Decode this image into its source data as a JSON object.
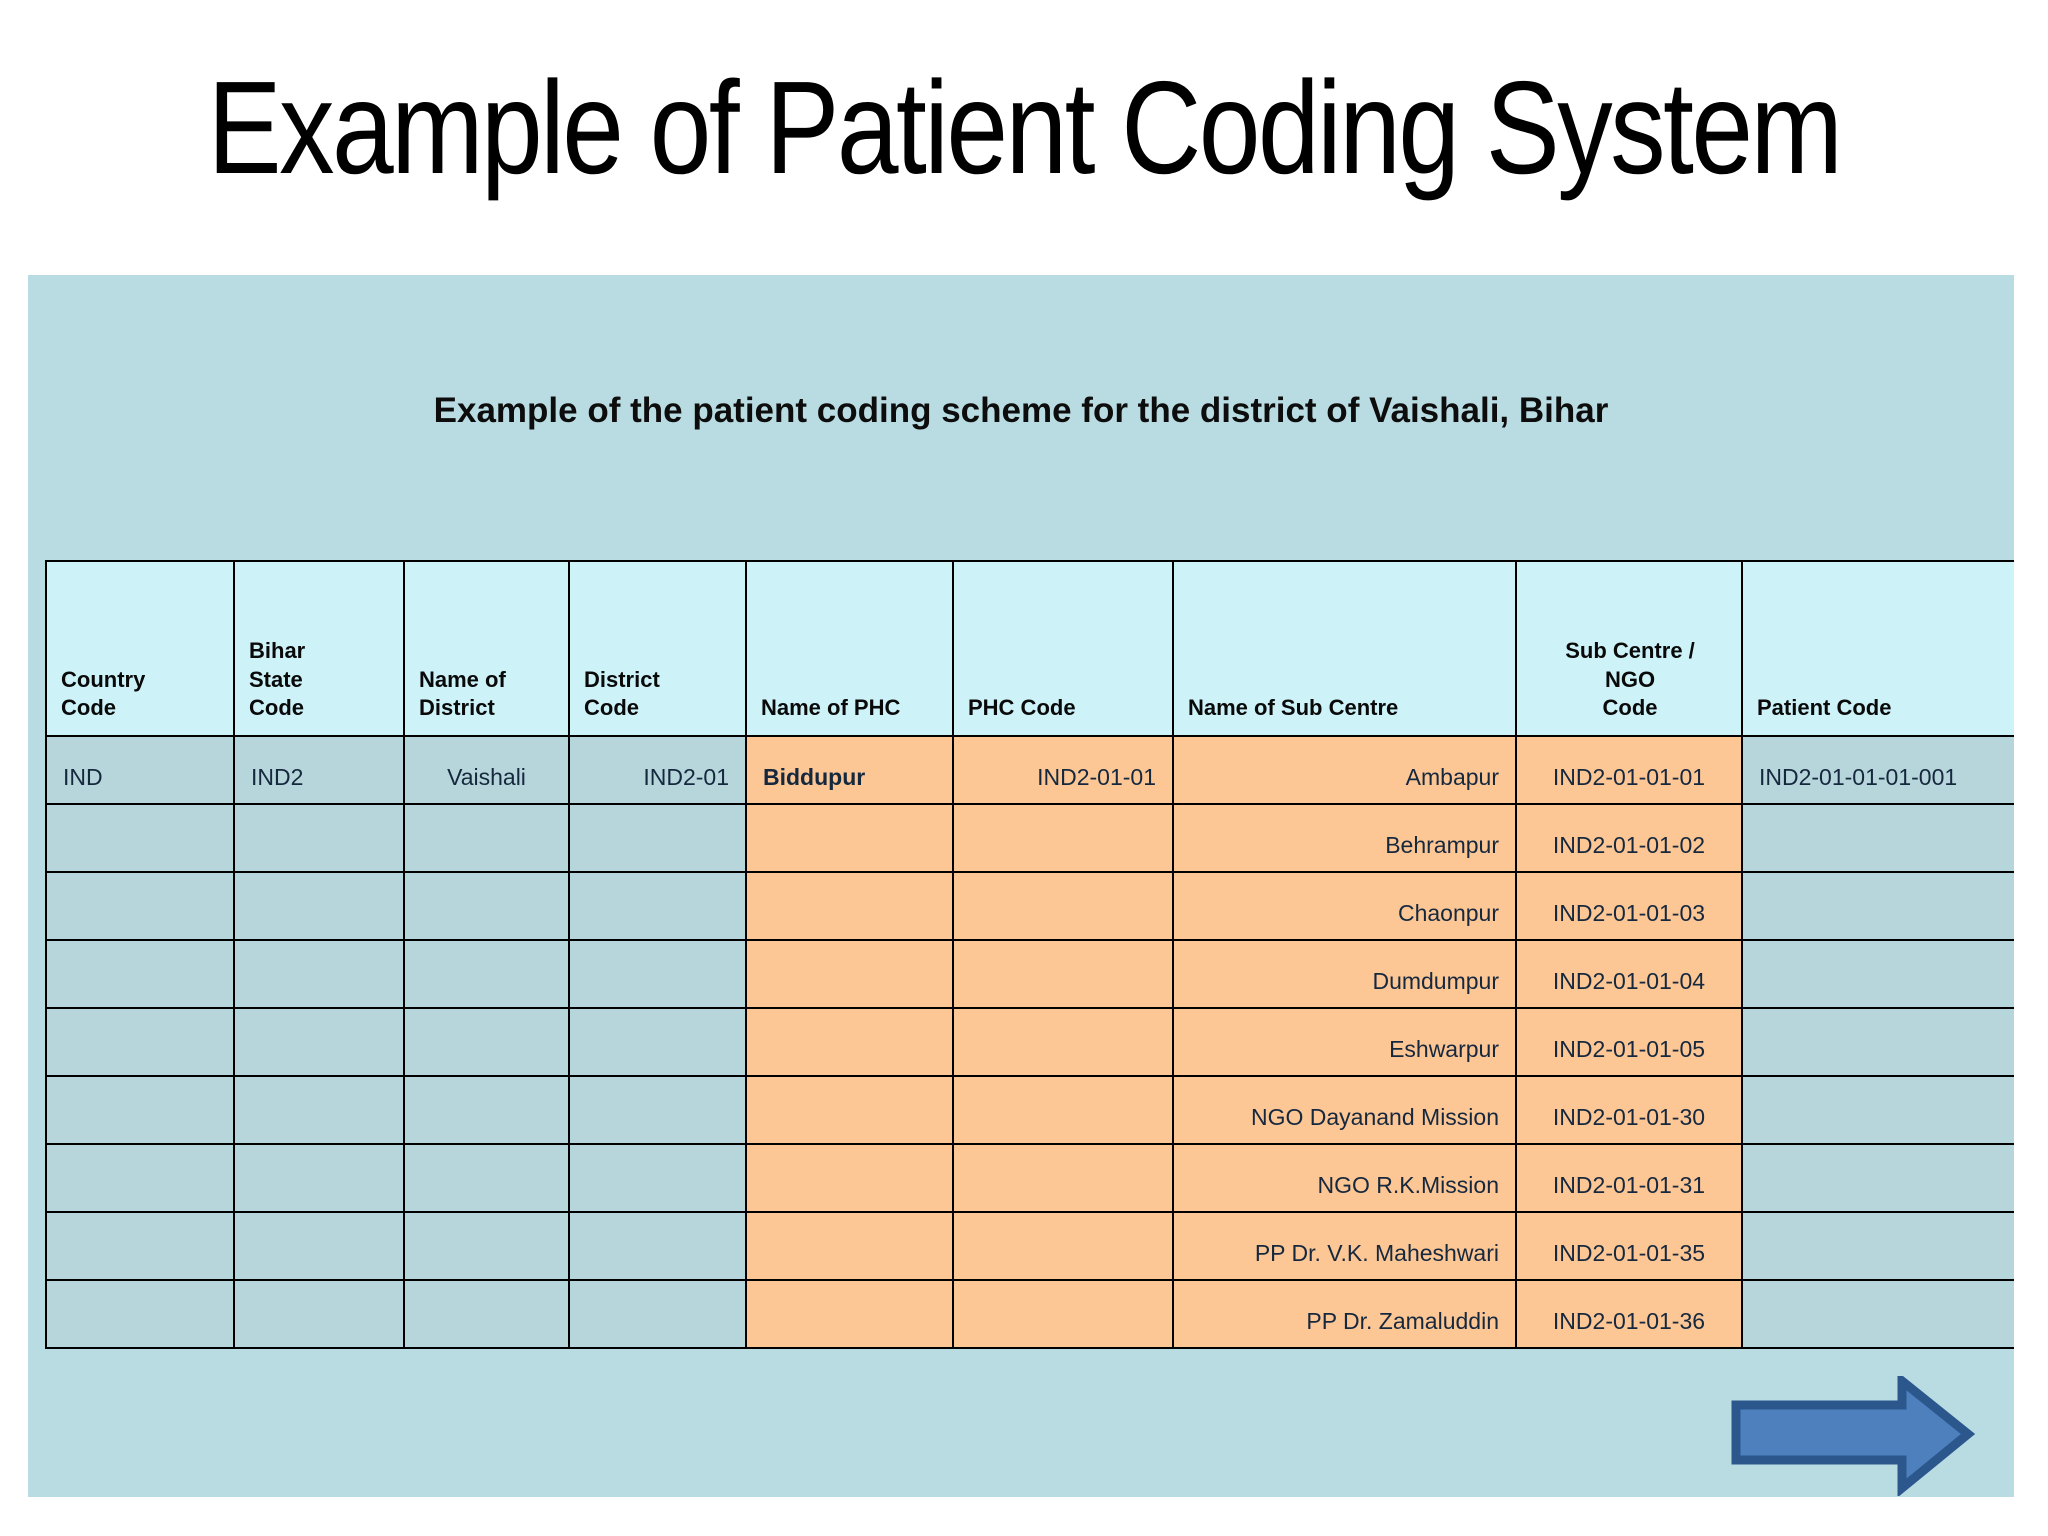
{
  "slide": {
    "title": "Example of Patient Coding System"
  },
  "panel": {
    "subtitle": "Example of the patient coding scheme for the district of Vaishali, Bihar"
  },
  "table": {
    "columns": [
      {
        "label": "Country\nCode"
      },
      {
        "label": "Bihar\nState\nCode"
      },
      {
        "label": "Name of\nDistrict"
      },
      {
        "label": "District\nCode"
      },
      {
        "label": "Name of PHC"
      },
      {
        "label": "PHC Code"
      },
      {
        "label": "Name of Sub Centre"
      },
      {
        "label": "Sub Centre /\nNGO\nCode"
      },
      {
        "label": "Patient Code"
      }
    ],
    "rows": [
      {
        "cells": [
          "IND",
          "IND2",
          "Vaishali",
          "IND2-01",
          "Biddupur",
          "IND2-01-01",
          "Ambapur",
          "IND2-01-01-01",
          "IND2-01-01-01-001"
        ]
      },
      {
        "cells": [
          "",
          "",
          "",
          "",
          "",
          "",
          "Behrampur",
          "IND2-01-01-02",
          ""
        ]
      },
      {
        "cells": [
          "",
          "",
          "",
          "",
          "",
          "",
          "Chaonpur",
          "IND2-01-01-03",
          ""
        ]
      },
      {
        "cells": [
          "",
          "",
          "",
          "",
          "",
          "",
          "Dumdumpur",
          "IND2-01-01-04",
          ""
        ]
      },
      {
        "cells": [
          "",
          "",
          "",
          "",
          "",
          "",
          "Eshwarpur",
          "IND2-01-01-05",
          ""
        ]
      },
      {
        "cells": [
          "",
          "",
          "",
          "",
          "",
          "",
          "NGO Dayanand Mission",
          "IND2-01-01-30",
          ""
        ]
      },
      {
        "cells": [
          "",
          "",
          "",
          "",
          "",
          "",
          "NGO R.K.Mission",
          "IND2-01-01-31",
          ""
        ]
      },
      {
        "cells": [
          "",
          "",
          "",
          "",
          "",
          "",
          "PP Dr. V.K. Maheshwari",
          "IND2-01-01-35",
          ""
        ]
      },
      {
        "cells": [
          "",
          "",
          "",
          "",
          "",
          "",
          "PP Dr. Zamaluddin",
          "IND2-01-01-36",
          ""
        ]
      }
    ]
  },
  "icons": {
    "arrow": "right-arrow"
  },
  "colors": {
    "panel_background": "#b9dce2",
    "header_cell": "#cdf3f9",
    "data_cell_blue": "#b6d6db",
    "data_cell_orange": "#fcc695",
    "table_border": "#000000",
    "arrow_fill": "#4d80bd",
    "arrow_stroke": "#2b578d"
  }
}
